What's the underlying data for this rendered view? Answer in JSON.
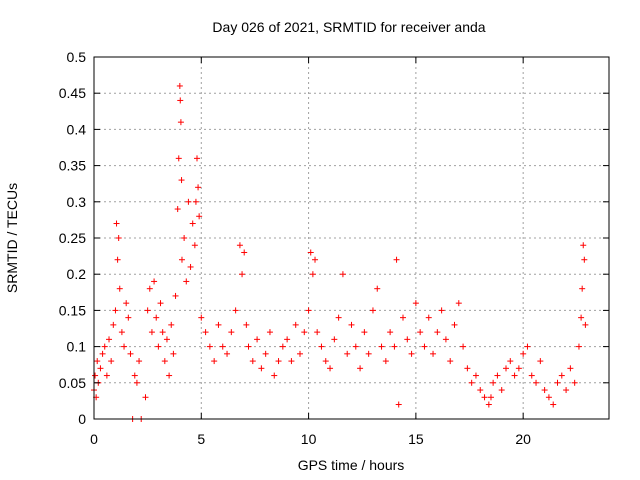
{
  "chart_data": {
    "type": "scatter",
    "title": "Day 026 of 2021, SRMTID for receiver anda",
    "xlabel": "GPS time / hours",
    "ylabel": "SRMTID / TECUs",
    "xlim": [
      0,
      24
    ],
    "ylim": [
      0,
      0.5
    ],
    "grid": true,
    "legend": "none",
    "marker": "+",
    "color": "#ff0000",
    "x_ticks": [
      0,
      5,
      10,
      15,
      20
    ],
    "x_tick_labels": [
      "0",
      "5",
      "10",
      "15",
      "20"
    ],
    "y_ticks": [
      0,
      0.05,
      0.1,
      0.15,
      0.2,
      0.25,
      0.3,
      0.35,
      0.4,
      0.45,
      0.5
    ],
    "y_tick_labels": [
      "0",
      "0.05",
      "0.1",
      "0.15",
      "0.2",
      "0.25",
      "0.3",
      "0.35",
      "0.4",
      "0.45",
      "0.5"
    ],
    "series": [
      {
        "name": "SRMTID",
        "x": [
          0.0,
          0.05,
          0.1,
          0.15,
          0.2,
          0.3,
          0.4,
          0.5,
          0.6,
          0.7,
          0.8,
          0.9,
          1.0,
          1.05,
          1.1,
          1.15,
          1.2,
          1.3,
          1.4,
          1.5,
          1.6,
          1.7,
          1.8,
          1.9,
          2.0,
          2.1,
          2.2,
          2.4,
          2.5,
          2.6,
          2.7,
          2.8,
          2.9,
          3.0,
          3.1,
          3.2,
          3.3,
          3.4,
          3.5,
          3.6,
          3.7,
          3.8,
          3.9,
          3.95,
          4.0,
          4.02,
          4.05,
          4.08,
          4.1,
          4.2,
          4.3,
          4.4,
          4.5,
          4.6,
          4.7,
          4.75,
          4.8,
          4.85,
          4.9,
          5.0,
          5.2,
          5.4,
          5.6,
          5.8,
          6.0,
          6.2,
          6.4,
          6.6,
          6.8,
          6.9,
          7.0,
          7.1,
          7.2,
          7.4,
          7.6,
          7.8,
          8.0,
          8.2,
          8.4,
          8.6,
          8.8,
          9.0,
          9.2,
          9.4,
          9.6,
          9.8,
          10.0,
          10.1,
          10.2,
          10.3,
          10.4,
          10.6,
          10.8,
          11.0,
          11.2,
          11.4,
          11.6,
          11.8,
          12.0,
          12.2,
          12.4,
          12.6,
          12.8,
          13.0,
          13.2,
          13.4,
          13.6,
          13.8,
          14.0,
          14.1,
          14.2,
          14.4,
          14.6,
          14.8,
          15.0,
          15.2,
          15.4,
          15.6,
          15.8,
          16.0,
          16.2,
          16.4,
          16.6,
          16.8,
          17.0,
          17.2,
          17.4,
          17.6,
          17.8,
          18.0,
          18.2,
          18.4,
          18.5,
          18.6,
          18.8,
          19.0,
          19.2,
          19.4,
          19.6,
          19.8,
          20.0,
          20.2,
          20.4,
          20.6,
          20.8,
          21.0,
          21.2,
          21.4,
          21.6,
          21.8,
          22.0,
          22.2,
          22.4,
          22.6,
          22.7,
          22.75,
          22.8,
          22.85,
          22.9
        ],
        "y": [
          0.04,
          0.06,
          0.03,
          0.08,
          0.05,
          0.07,
          0.09,
          0.1,
          0.06,
          0.11,
          0.08,
          0.13,
          0.15,
          0.27,
          0.22,
          0.25,
          0.18,
          0.12,
          0.1,
          0.16,
          0.14,
          0.09,
          0.0,
          0.06,
          0.05,
          0.08,
          0.0,
          0.03,
          0.15,
          0.18,
          0.12,
          0.19,
          0.14,
          0.1,
          0.16,
          0.12,
          0.08,
          0.11,
          0.06,
          0.13,
          0.09,
          0.17,
          0.29,
          0.36,
          0.46,
          0.44,
          0.41,
          0.33,
          0.22,
          0.25,
          0.19,
          0.3,
          0.21,
          0.27,
          0.24,
          0.3,
          0.36,
          0.32,
          0.28,
          0.14,
          0.12,
          0.1,
          0.08,
          0.13,
          0.1,
          0.09,
          0.12,
          0.15,
          0.24,
          0.2,
          0.23,
          0.13,
          0.1,
          0.08,
          0.11,
          0.07,
          0.09,
          0.12,
          0.06,
          0.08,
          0.1,
          0.11,
          0.08,
          0.13,
          0.09,
          0.12,
          0.15,
          0.23,
          0.2,
          0.22,
          0.12,
          0.1,
          0.08,
          0.07,
          0.11,
          0.14,
          0.2,
          0.09,
          0.13,
          0.1,
          0.07,
          0.12,
          0.09,
          0.15,
          0.18,
          0.1,
          0.08,
          0.12,
          0.1,
          0.22,
          0.02,
          0.14,
          0.11,
          0.09,
          0.16,
          0.12,
          0.1,
          0.14,
          0.09,
          0.12,
          0.15,
          0.11,
          0.08,
          0.13,
          0.16,
          0.1,
          0.07,
          0.05,
          0.06,
          0.04,
          0.03,
          0.02,
          0.03,
          0.05,
          0.06,
          0.04,
          0.07,
          0.08,
          0.06,
          0.07,
          0.09,
          0.1,
          0.06,
          0.05,
          0.08,
          0.04,
          0.03,
          0.02,
          0.05,
          0.06,
          0.04,
          0.07,
          0.05,
          0.1,
          0.14,
          0.18,
          0.24,
          0.22,
          0.13
        ]
      }
    ]
  }
}
